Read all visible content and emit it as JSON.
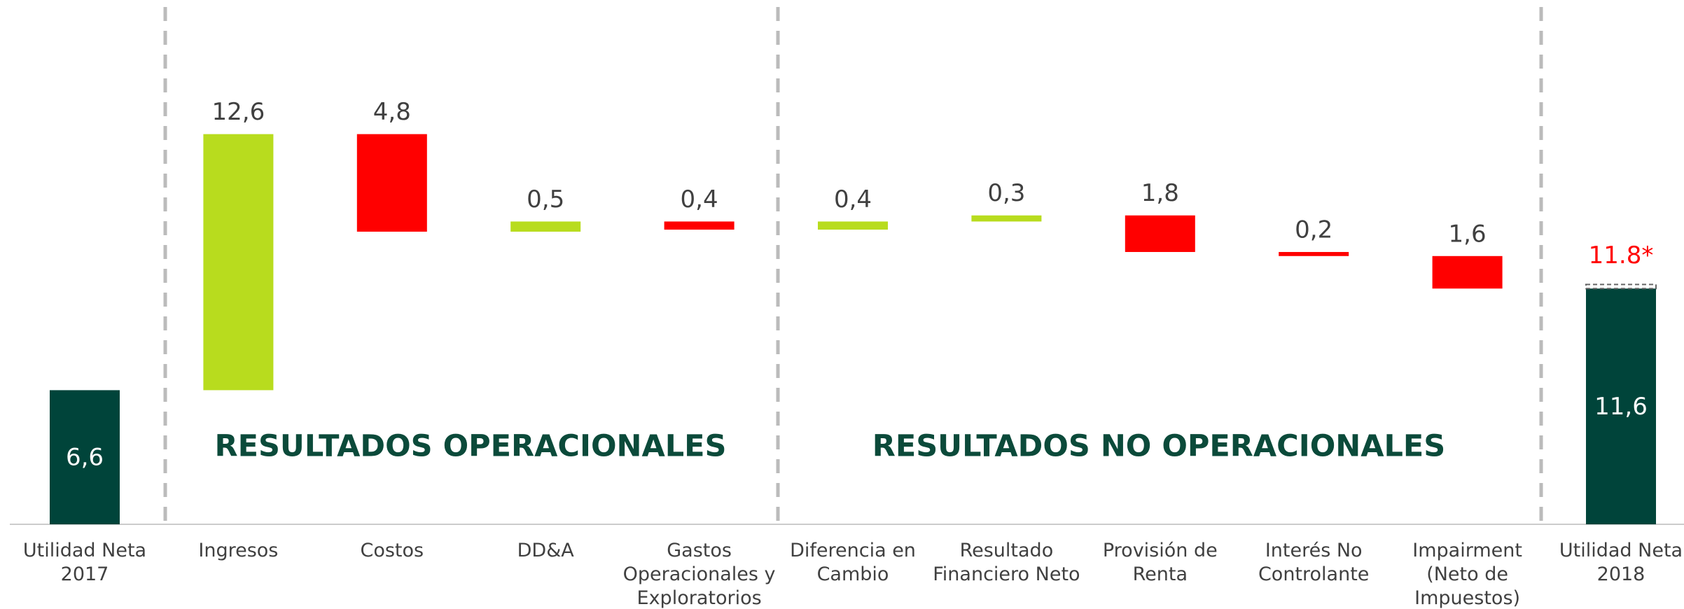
{
  "chart_data": {
    "type": "waterfall",
    "categories": [
      "Utilidad Neta\n2017",
      "Ingresos",
      "Costos",
      "DD&A",
      "Gastos\nOperacionales y\nExploratorios",
      "Diferencia en\nCambio",
      "Resultado\nFinanciero Neto",
      "Provisión de\nRenta",
      "Interés No\nControlante",
      "Impairment\n(Neto de\nImpuestos)",
      "Utilidad Neta\n2018"
    ],
    "values": [
      6.6,
      12.6,
      -4.8,
      0.5,
      -0.4,
      0.4,
      0.3,
      -1.8,
      -0.2,
      -1.6,
      11.6
    ],
    "value_labels": [
      "6,6",
      "12,6",
      "4,8",
      "0,5",
      "0,4",
      "0,4",
      "0,3",
      "1,8",
      "0,2",
      "1,6",
      "11,6"
    ],
    "kinds": [
      "total",
      "delta",
      "delta",
      "delta",
      "delta",
      "delta",
      "delta",
      "delta",
      "delta",
      "delta",
      "total"
    ],
    "colors": {
      "total": "#00443a",
      "increase": "#b8dc1e",
      "decrease": "#ff0000"
    },
    "ylim": [
      0,
      25.8
    ],
    "groups": [
      "RESULTADOS OPERACIONALES",
      "RESULTADOS NO OPERACIONALES"
    ],
    "annotation": {
      "text": "11.8*",
      "value": 11.8,
      "color": "#ff0000"
    }
  }
}
